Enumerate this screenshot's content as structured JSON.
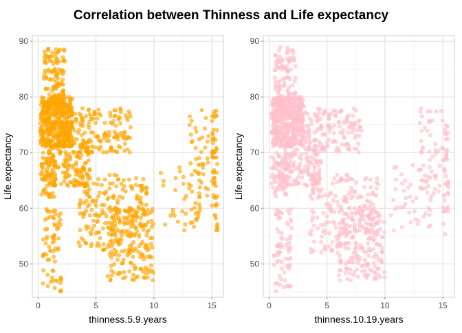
{
  "title": "Correlation between Thinness and Life expectancy",
  "chart_data": [
    {
      "type": "scatter",
      "xlabel": "thinness.5.9.years",
      "ylabel": "Life.expectancy",
      "xlim": [
        -0.5,
        16
      ],
      "ylim": [
        44,
        91
      ],
      "xticks": [
        0,
        5,
        10,
        15
      ],
      "yticks": [
        50,
        60,
        70,
        80,
        90
      ],
      "grid": true,
      "point_color": "#FFA500",
      "clusters": [
        {
          "x": [
            0.2,
            3.0
          ],
          "y": [
            71,
            80
          ],
          "n": 420
        },
        {
          "x": [
            0.5,
            2.3
          ],
          "y": [
            77,
            89
          ],
          "n": 120
        },
        {
          "x": [
            0.8,
            4.5
          ],
          "y": [
            64,
            72
          ],
          "n": 160
        },
        {
          "x": [
            3.0,
            8.0
          ],
          "y": [
            70,
            78
          ],
          "n": 140
        },
        {
          "x": [
            3.5,
            9.5
          ],
          "y": [
            52,
            66
          ],
          "n": 200
        },
        {
          "x": [
            6.0,
            10.0
          ],
          "y": [
            47,
            60
          ],
          "n": 170
        },
        {
          "x": [
            10.5,
            14.0
          ],
          "y": [
            56,
            68
          ],
          "n": 45
        },
        {
          "x": [
            13.0,
            15.5
          ],
          "y": [
            62,
            78
          ],
          "n": 55
        },
        {
          "x": [
            15.0,
            15.5
          ],
          "y": [
            55,
            75
          ],
          "n": 40
        },
        {
          "x": [
            0.4,
            2.0
          ],
          "y": [
            45,
            60
          ],
          "n": 70
        },
        {
          "x": [
            0.2,
            1.5
          ],
          "y": [
            62,
            70
          ],
          "n": 60
        }
      ]
    },
    {
      "type": "scatter",
      "xlabel": "thinness.10.19.years",
      "ylabel": "Life.expectancy",
      "xlim": [
        -0.5,
        16
      ],
      "ylim": [
        44,
        91
      ],
      "xticks": [
        0,
        5,
        10,
        15
      ],
      "yticks": [
        50,
        60,
        70,
        80,
        90
      ],
      "grid": true,
      "point_color": "#FFC0CB",
      "clusters": [
        {
          "x": [
            0.2,
            3.0
          ],
          "y": [
            71,
            80
          ],
          "n": 420
        },
        {
          "x": [
            0.5,
            2.3
          ],
          "y": [
            77,
            89
          ],
          "n": 120
        },
        {
          "x": [
            0.8,
            4.5
          ],
          "y": [
            64,
            72
          ],
          "n": 160
        },
        {
          "x": [
            3.0,
            8.0
          ],
          "y": [
            70,
            78
          ],
          "n": 140
        },
        {
          "x": [
            3.5,
            9.5
          ],
          "y": [
            52,
            66
          ],
          "n": 200
        },
        {
          "x": [
            6.0,
            10.0
          ],
          "y": [
            47,
            60
          ],
          "n": 170
        },
        {
          "x": [
            10.5,
            14.0
          ],
          "y": [
            56,
            68
          ],
          "n": 45
        },
        {
          "x": [
            13.0,
            15.5
          ],
          "y": [
            62,
            78
          ],
          "n": 55
        },
        {
          "x": [
            15.0,
            15.5
          ],
          "y": [
            55,
            75
          ],
          "n": 40
        },
        {
          "x": [
            0.4,
            2.0
          ],
          "y": [
            45,
            60
          ],
          "n": 70
        },
        {
          "x": [
            0.2,
            1.5
          ],
          "y": [
            62,
            70
          ],
          "n": 60
        }
      ]
    }
  ]
}
